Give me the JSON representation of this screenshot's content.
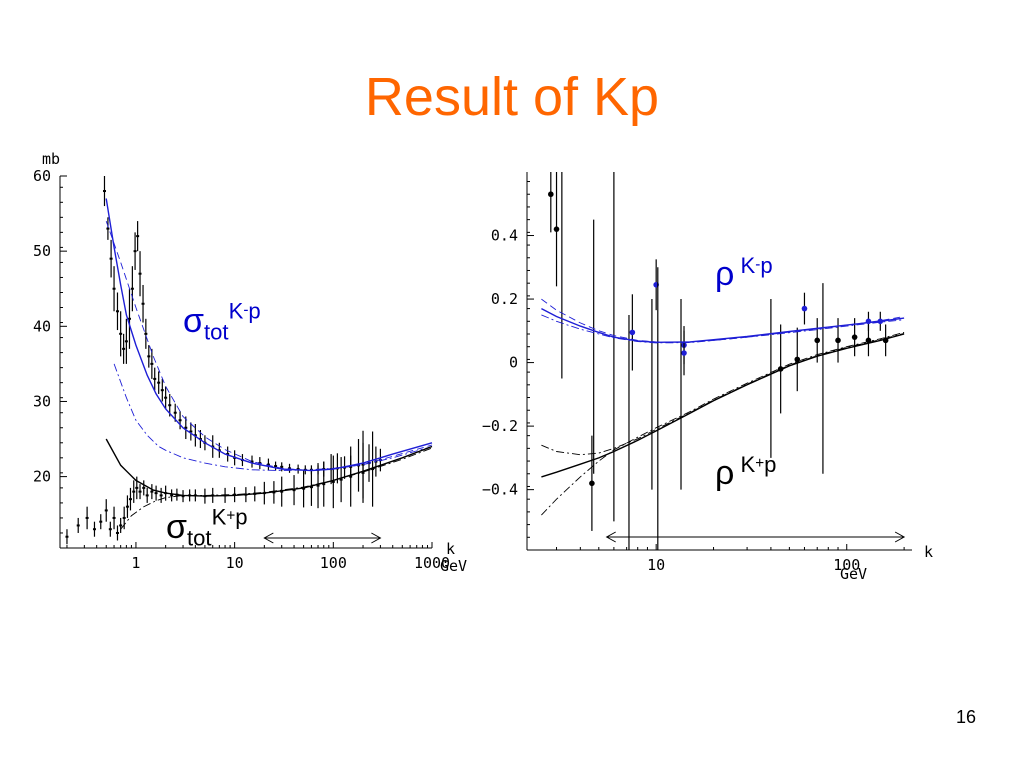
{
  "slide": {
    "title": "Result of Kp",
    "page_number": "16"
  },
  "colors": {
    "title": "#ff6600",
    "kminus_p": "#1f1fd6",
    "kplus_p": "#000000",
    "annotation_blue": "#0000cc"
  },
  "chart_data": [
    {
      "type": "line",
      "name": "sigma_tot",
      "x_scale": "log",
      "xlim": [
        0.17,
        1000
      ],
      "ylim": [
        10.5,
        60
      ],
      "ylabel": "mb",
      "xunit": "k",
      "x_ticks": [
        {
          "value": 1,
          "label": "1"
        },
        {
          "value": 10,
          "label": "10"
        },
        {
          "value": 100,
          "label": "100"
        },
        {
          "value": 1000,
          "label": "1000"
        }
      ],
      "x_tick_unit": "GeV",
      "y_ticks": [
        {
          "value": 20,
          "label": "20"
        },
        {
          "value": 30,
          "label": "30"
        },
        {
          "value": 40,
          "label": "40"
        },
        {
          "value": 50,
          "label": "50"
        },
        {
          "value": 60,
          "label": "60"
        }
      ],
      "annotations": {
        "kminus": {
          "sym": "σ",
          "sub": "tot",
          "sup": "K",
          "supsign": "-",
          "tail": "p"
        },
        "kplus": {
          "sym": "σ",
          "sub": "tot",
          "sup": "K",
          "supsign": "+",
          "tail": "p"
        }
      },
      "fit_range": [
        20,
        300
      ],
      "series": [
        {
          "group": "kminus",
          "style": "solid",
          "x": [
            0.5,
            0.6,
            0.7,
            0.8,
            1.0,
            1.3,
            1.6,
            2,
            3,
            5,
            8,
            15,
            30,
            60,
            100,
            200,
            400,
            1000
          ],
          "y": [
            57,
            50.5,
            45.5,
            41.5,
            37.5,
            33.5,
            31,
            29,
            26.5,
            24.5,
            23,
            21.8,
            21,
            20.8,
            21,
            21.8,
            23,
            24.5
          ]
        },
        {
          "group": "kminus",
          "style": "dashed",
          "x": [
            0.5,
            0.7,
            1.0,
            1.5,
            2,
            3,
            5,
            8,
            15,
            30,
            60,
            100,
            200,
            400,
            1000
          ],
          "y": [
            54,
            48.5,
            42.5,
            36,
            32,
            28,
            25.3,
            23.6,
            22,
            21.1,
            20.8,
            21,
            21.6,
            22.7,
            24.2
          ]
        },
        {
          "group": "kminus",
          "style": "dashdot",
          "x": [
            0.6,
            0.8,
            1.0,
            1.3,
            1.7,
            2,
            3,
            5,
            8,
            15,
            30,
            60,
            100,
            200,
            400,
            1000
          ],
          "y": [
            35,
            30.5,
            27.5,
            25.5,
            24,
            23.5,
            22.5,
            21.8,
            21.3,
            20.9,
            20.8,
            20.9,
            21.1,
            21.6,
            22.5,
            24
          ]
        },
        {
          "group": "kplus",
          "style": "solid",
          "x": [
            0.5,
            0.7,
            1.0,
            1.5,
            2,
            3,
            5,
            10,
            20,
            50,
            100,
            200,
            500,
            1000
          ],
          "y": [
            25,
            21.5,
            19.5,
            18.2,
            17.8,
            17.5,
            17.4,
            17.5,
            17.8,
            18.5,
            19.5,
            20.7,
            22.5,
            24
          ]
        },
        {
          "group": "kplus",
          "style": "dashdot",
          "x": [
            0.7,
            0.9,
            1.2,
            1.6,
            2,
            3,
            5,
            10,
            20,
            50,
            100,
            200,
            500,
            1000
          ],
          "y": [
            13,
            14.8,
            16,
            16.8,
            17.2,
            17.5,
            17.5,
            17.6,
            17.9,
            18.6,
            19.5,
            20.6,
            22.3,
            23.8
          ]
        }
      ],
      "measurements": [
        {
          "group": "kminus",
          "x": [
            0.48,
            0.52,
            0.56,
            0.6,
            0.65,
            0.7,
            0.75,
            0.8,
            0.86,
            0.92,
            0.98,
            1.04,
            1.1,
            1.18,
            1.26,
            1.35,
            1.45,
            1.55,
            1.7,
            1.85,
            2.0,
            2.2,
            2.5,
            2.8,
            3.2,
            3.6,
            4.0,
            4.5,
            5.0,
            6.0,
            7.0,
            8.5,
            10,
            12,
            15,
            18,
            22,
            26,
            30,
            36,
            44,
            52,
            60,
            70,
            80,
            95,
            110,
            130,
            150,
            180,
            200,
            230,
            270,
            300
          ],
          "y": [
            58,
            53,
            49,
            45,
            42,
            39,
            37,
            38,
            41,
            45,
            50,
            52,
            47,
            43,
            39,
            36,
            35,
            33,
            32.5,
            31.5,
            30.5,
            29.5,
            28.5,
            27.5,
            26.5,
            26,
            25.5,
            25,
            24.5,
            24,
            23.5,
            23,
            22.5,
            22.2,
            22,
            21.8,
            21.6,
            21.4,
            21.3,
            21.1,
            21,
            20.9,
            20.9,
            20.9,
            21,
            21,
            21.1,
            21.2,
            21.3,
            21.5,
            21.6,
            21.8,
            22,
            22.2
          ],
          "err": [
            2,
            1.5,
            2.5,
            3,
            2.5,
            3,
            2,
            3,
            4,
            3,
            2.5,
            2,
            3,
            2.5,
            2,
            1.5,
            2,
            1.5,
            1.5,
            1.5,
            1.5,
            1.5,
            1.2,
            1.2,
            1.5,
            1.2,
            1.5,
            1.2,
            1.0,
            1.5,
            1.0,
            1.0,
            1.0,
            0.8,
            0.8,
            0.8,
            0.8,
            0.6,
            0.6,
            0.6,
            0.6,
            0.6,
            0.6,
            0.6,
            1.0,
            2.0,
            2.0,
            1.5,
            1.5,
            3.5,
            4.5,
            2.5,
            2.0,
            1.5
          ]
        },
        {
          "group": "kplus",
          "x": [
            0.2,
            0.26,
            0.32,
            0.38,
            0.44,
            0.5,
            0.55,
            0.6,
            0.65,
            0.7,
            0.76,
            0.82,
            0.88,
            0.95,
            1.02,
            1.1,
            1.2,
            1.3,
            1.45,
            1.6,
            1.8,
            2.0,
            2.3,
            2.6,
            3.0,
            3.5,
            4.0,
            5.0,
            6.0,
            8.0,
            10,
            13,
            16,
            20,
            25,
            30,
            40,
            50,
            60,
            70,
            80,
            100,
            120,
            150,
            200,
            250
          ],
          "y": [
            12,
            13.5,
            14.5,
            13,
            14,
            15.5,
            13,
            14.5,
            12.5,
            13.5,
            14.5,
            16,
            17,
            18,
            18.5,
            18,
            18.5,
            17.5,
            18,
            17.8,
            17.5,
            17.8,
            17.5,
            17.6,
            17.4,
            17.5,
            17.5,
            17.4,
            17.5,
            17.5,
            17.6,
            17.6,
            17.7,
            17.8,
            17.9,
            18,
            18.2,
            18.4,
            18.6,
            18.8,
            19,
            19.3,
            19.6,
            20,
            20.5,
            21
          ],
          "err": [
            1,
            1,
            1.5,
            1,
            1,
            1.5,
            1,
            1.5,
            1,
            1,
            1.5,
            1.5,
            1.5,
            1.5,
            1.5,
            1,
            1,
            1,
            1,
            1,
            1,
            1,
            0.8,
            0.8,
            0.8,
            0.8,
            0.8,
            1,
            1,
            1,
            1,
            1,
            1,
            1.5,
            1.5,
            2,
            2,
            2.5,
            2.5,
            3,
            3,
            3.5,
            3,
            4,
            4,
            5
          ]
        }
      ]
    },
    {
      "type": "scatter",
      "name": "rho",
      "x_scale": "log",
      "xlim": [
        2.1,
        220
      ],
      "ylim": [
        -0.59,
        0.6
      ],
      "xunit": "k",
      "x_ticks": [
        {
          "value": 10,
          "label": "10"
        },
        {
          "value": 100,
          "label": "100"
        }
      ],
      "x_tick_unit": "GeV",
      "y_ticks": [
        {
          "value": 0.4,
          "label": "0.4"
        },
        {
          "value": 0.2,
          "label": "0.2"
        },
        {
          "value": 0,
          "label": "0"
        },
        {
          "value": -0.2,
          "label": "-0.2"
        },
        {
          "value": -0.4,
          "label": "-0.4"
        }
      ],
      "annotations": {
        "kminus": {
          "sym": "ρ",
          "sup": "K",
          "supsign": "-",
          "tail": "p"
        },
        "kplus": {
          "sym": "ρ",
          "sup": "K",
          "supsign": "+",
          "tail": "p"
        }
      },
      "fit_range": [
        5.5,
        200
      ],
      "series": [
        {
          "group": "kminus",
          "style": "solid",
          "x": [
            2.5,
            3,
            4,
            5,
            6,
            8,
            10,
            15,
            20,
            30,
            50,
            70,
            100,
            150,
            200
          ],
          "y": [
            0.17,
            0.145,
            0.115,
            0.095,
            0.08,
            0.068,
            0.064,
            0.065,
            0.072,
            0.082,
            0.098,
            0.108,
            0.118,
            0.13,
            0.14
          ]
        },
        {
          "group": "kminus",
          "style": "dashed",
          "x": [
            2.5,
            3,
            4,
            5,
            6,
            8,
            10,
            15,
            20,
            30,
            50,
            70,
            100,
            150,
            200
          ],
          "y": [
            0.2,
            0.165,
            0.125,
            0.1,
            0.085,
            0.07,
            0.065,
            0.064,
            0.07,
            0.08,
            0.096,
            0.106,
            0.118,
            0.132,
            0.145
          ]
        },
        {
          "group": "kminus",
          "style": "dashdot",
          "x": [
            2.5,
            3,
            4,
            5,
            6,
            8,
            10,
            15,
            20,
            30,
            50,
            70,
            100,
            150,
            200
          ],
          "y": [
            0.15,
            0.13,
            0.105,
            0.09,
            0.078,
            0.066,
            0.062,
            0.063,
            0.07,
            0.08,
            0.094,
            0.104,
            0.115,
            0.127,
            0.135
          ]
        },
        {
          "group": "kplus",
          "style": "solid",
          "x": [
            2.5,
            3,
            4,
            5,
            6,
            8,
            10,
            15,
            20,
            30,
            50,
            70,
            100,
            150,
            200
          ],
          "y": [
            -0.36,
            -0.345,
            -0.32,
            -0.3,
            -0.28,
            -0.245,
            -0.215,
            -0.16,
            -0.12,
            -0.07,
            -0.01,
            0.02,
            0.045,
            0.07,
            0.09
          ]
        },
        {
          "group": "kplus",
          "style": "dashdot",
          "x": [
            2.5,
            3,
            4,
            5,
            6,
            8,
            10,
            15,
            20,
            30,
            50,
            70,
            100,
            150,
            200
          ],
          "y": [
            -0.48,
            -0.43,
            -0.36,
            -0.31,
            -0.275,
            -0.235,
            -0.205,
            -0.155,
            -0.115,
            -0.065,
            -0.005,
            0.025,
            0.05,
            0.075,
            0.095
          ]
        },
        {
          "group": "kplus",
          "style": "dashdot",
          "x": [
            2.5,
            3,
            4,
            5,
            6,
            8,
            10,
            15,
            20,
            30,
            50,
            70,
            100,
            150,
            200
          ],
          "y": [
            -0.26,
            -0.28,
            -0.29,
            -0.285,
            -0.27,
            -0.24,
            -0.21,
            -0.158,
            -0.118,
            -0.068,
            -0.008,
            0.022,
            0.048,
            0.072,
            0.092
          ]
        }
      ],
      "measurements": [
        {
          "group": "kplus",
          "x": [
            2.8,
            3.0,
            4.6,
            45,
            55,
            70,
            90,
            110,
            130,
            160
          ],
          "y": [
            0.53,
            0.42,
            -0.38,
            -0.02,
            0.01,
            0.07,
            0.07,
            0.08,
            0.07,
            0.07
          ],
          "err": [
            0.12,
            0.18,
            0.15,
            0.14,
            0.1,
            0.07,
            0.07,
            0.06,
            0.05,
            0.05
          ]
        },
        {
          "group": "kminus",
          "x": [
            7.5,
            10,
            14,
            14,
            60,
            130,
            150
          ],
          "y": [
            0.095,
            0.245,
            0.055,
            0.03,
            0.17,
            0.13,
            0.13
          ],
          "err": [
            0.12,
            0.08,
            0.06,
            0.07,
            0.05,
            0.03,
            0.03
          ]
        },
        {
          "group": "kplus",
          "x": [
            3.2,
            4.7,
            6.0,
            7.2,
            9.5,
            10.2,
            13.5,
            40,
            75
          ],
          "y": [
            0.3,
            0.05,
            0.1,
            -0.3,
            -0.1,
            -0.2,
            -0.1,
            -0.05,
            -0.05
          ],
          "err": [
            0.35,
            0.4,
            0.6,
            0.45,
            0.3,
            0.5,
            0.3,
            0.25,
            0.3
          ],
          "no_marker": true
        }
      ]
    }
  ]
}
